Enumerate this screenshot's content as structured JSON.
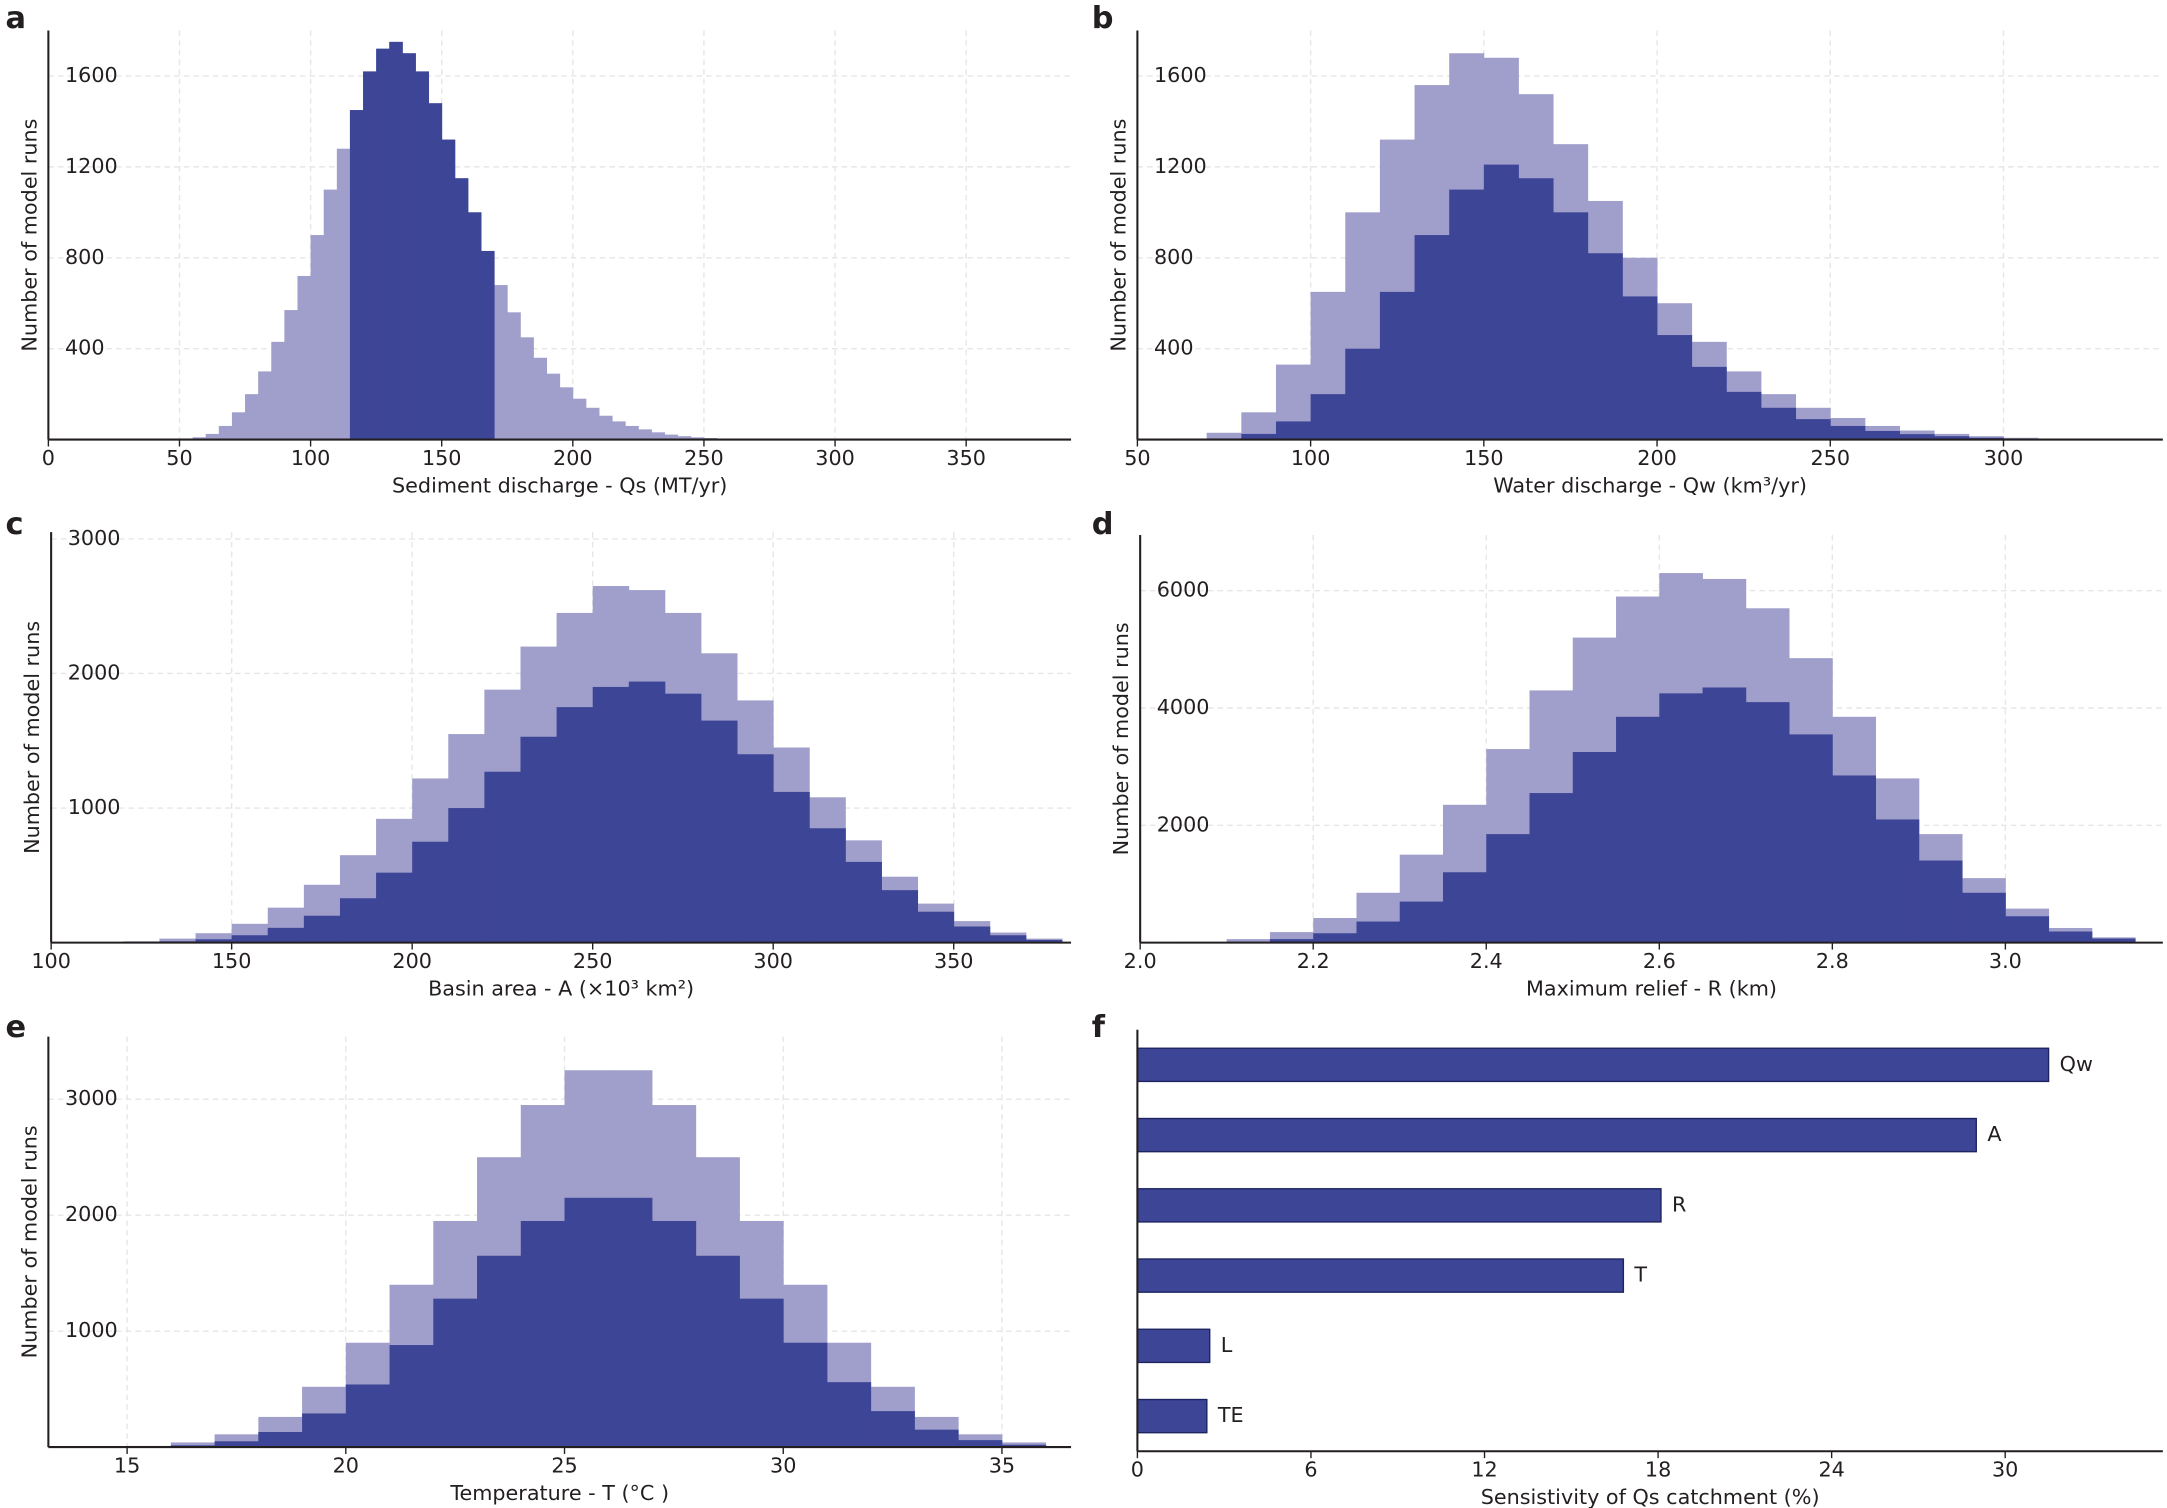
{
  "chart_data": [
    {
      "type": "histogram",
      "panel_label": "a",
      "xlabel": "Sediment discharge - Qs (MT/yr)",
      "ylabel": "Number of model runs",
      "bins": [
        50,
        55,
        60,
        65,
        70,
        75,
        80,
        85,
        90,
        95,
        100,
        105,
        110,
        115,
        120,
        125,
        130,
        135,
        140,
        145,
        150,
        155,
        160,
        165,
        170,
        175,
        180,
        185,
        190,
        195,
        200,
        205,
        210,
        215,
        220,
        225,
        230,
        235,
        240,
        245,
        250,
        255,
        260,
        265,
        270
      ],
      "series": [
        {
          "color": "#a09fcb",
          "values": [
            5,
            10,
            25,
            60,
            120,
            200,
            300,
            430,
            570,
            720,
            900,
            1100,
            1280,
            1450,
            1620,
            1720,
            1750,
            1700,
            1620,
            1480,
            1320,
            1150,
            1000,
            830,
            680,
            560,
            450,
            360,
            290,
            230,
            180,
            140,
            105,
            80,
            60,
            45,
            32,
            22,
            15,
            10,
            7,
            4,
            2,
            1
          ]
        },
        {
          "color": "#3d4597",
          "values": [
            null,
            null,
            null,
            null,
            null,
            null,
            null,
            null,
            null,
            null,
            null,
            null,
            null,
            1450,
            1620,
            1720,
            1750,
            1700,
            1620,
            1480,
            1320,
            1150,
            1000,
            830,
            null,
            null,
            null,
            null,
            null,
            null,
            null,
            null,
            null,
            null,
            null,
            null,
            null,
            null,
            null,
            null,
            null,
            null,
            null,
            null
          ]
        }
      ],
      "xlim": [
        0,
        390
      ],
      "ylim": [
        0,
        1800
      ],
      "xticks": [
        0,
        50,
        100,
        150,
        200,
        250,
        300,
        350
      ],
      "yticks": [
        400,
        800,
        1200,
        1600
      ],
      "grid": true
    },
    {
      "type": "histogram",
      "panel_label": "b",
      "xlabel": "Water discharge - Qw (km³/yr)",
      "ylabel": "Number of model runs",
      "bins": [
        60,
        70,
        80,
        90,
        100,
        110,
        120,
        130,
        140,
        150,
        160,
        170,
        180,
        190,
        200,
        210,
        220,
        230,
        240,
        250,
        260,
        270,
        280,
        290,
        300,
        310
      ],
      "series": [
        {
          "color": "#a09fcb",
          "values": [
            5,
            30,
            120,
            330,
            650,
            1000,
            1320,
            1560,
            1700,
            1680,
            1520,
            1300,
            1050,
            800,
            600,
            430,
            300,
            200,
            140,
            95,
            60,
            40,
            25,
            15,
            8
          ]
        },
        {
          "color": "#3d4597",
          "values": [
            0,
            5,
            25,
            80,
            200,
            400,
            650,
            900,
            1100,
            1210,
            1150,
            1000,
            820,
            630,
            460,
            320,
            210,
            140,
            90,
            60,
            38,
            24,
            15,
            8,
            4
          ]
        }
      ],
      "xlim": [
        50,
        346
      ],
      "ylim": [
        0,
        1800
      ],
      "xticks": [
        50,
        100,
        150,
        200,
        250,
        300
      ],
      "yticks": [
        400,
        800,
        1200,
        1600
      ],
      "grid": true
    },
    {
      "type": "histogram",
      "panel_label": "c",
      "xlabel": "Basin area - A (×10³ km²)",
      "ylabel": "Number of model runs",
      "bins": [
        120,
        130,
        140,
        150,
        160,
        170,
        180,
        190,
        200,
        210,
        220,
        230,
        240,
        250,
        260,
        270,
        280,
        290,
        300,
        310,
        320,
        330,
        340,
        350,
        360,
        370,
        380
      ],
      "series": [
        {
          "color": "#a09fcb",
          "values": [
            10,
            30,
            70,
            140,
            260,
            430,
            650,
            920,
            1220,
            1550,
            1880,
            2200,
            2450,
            2650,
            2620,
            2450,
            2150,
            1800,
            1450,
            1080,
            760,
            490,
            290,
            160,
            75,
            30
          ]
        },
        {
          "color": "#3d4597",
          "values": [
            3,
            10,
            25,
            55,
            110,
            200,
            330,
            520,
            750,
            1000,
            1270,
            1530,
            1750,
            1900,
            1940,
            1850,
            1650,
            1400,
            1120,
            850,
            600,
            390,
            230,
            120,
            55,
            20
          ]
        }
      ],
      "xlim": [
        100,
        382.5
      ],
      "ylim": [
        0,
        3050
      ],
      "xticks": [
        100,
        150,
        200,
        250,
        300,
        350
      ],
      "yticks": [
        1000,
        2000,
        3000
      ],
      "grid": true
    },
    {
      "type": "histogram",
      "panel_label": "d",
      "xlabel": "Maximum relief - R (km)",
      "ylabel": "Number of model runs",
      "bins": [
        2.05,
        2.1,
        2.15,
        2.2,
        2.25,
        2.3,
        2.35,
        2.4,
        2.45,
        2.5,
        2.55,
        2.6,
        2.65,
        2.7,
        2.75,
        2.8,
        2.85,
        2.9,
        2.95,
        3.0,
        3.05,
        3.1,
        3.15
      ],
      "series": [
        {
          "color": "#a09fcb",
          "values": [
            15,
            60,
            180,
            420,
            850,
            1500,
            2350,
            3300,
            4300,
            5200,
            5900,
            6300,
            6200,
            5700,
            4850,
            3850,
            2800,
            1850,
            1100,
            580,
            250,
            90
          ]
        },
        {
          "color": "#3d4597",
          "values": [
            3,
            15,
            60,
            160,
            360,
            700,
            1200,
            1850,
            2550,
            3250,
            3850,
            4250,
            4350,
            4100,
            3550,
            2850,
            2100,
            1400,
            850,
            450,
            190,
            70
          ]
        }
      ],
      "xlim": [
        2.0,
        3.182
      ],
      "ylim": [
        0,
        6950
      ],
      "xticks": [
        {
          "value": 2,
          "label": "2.0"
        },
        2.2,
        2.4,
        2.6,
        2.8,
        {
          "value": 3,
          "label": "3.0"
        }
      ],
      "yticks": [
        2000,
        4000,
        6000
      ],
      "grid": true
    },
    {
      "type": "histogram",
      "panel_label": "e",
      "xlabel": "Temperature - T (°C )",
      "ylabel": "Number of model runs",
      "bins": [
        15,
        16,
        17,
        18,
        19,
        20,
        21,
        22,
        23,
        24,
        25,
        26,
        27,
        28,
        29,
        30,
        31,
        32,
        33,
        34,
        35,
        36
      ],
      "series": [
        {
          "color": "#a09fcb",
          "values": [
            10,
            40,
            110,
            260,
            520,
            900,
            1400,
            1950,
            2500,
            2950,
            3250,
            3250,
            2950,
            2500,
            1950,
            1400,
            900,
            520,
            260,
            110,
            40
          ]
        },
        {
          "color": "#3d4597",
          "values": [
            3,
            15,
            50,
            130,
            290,
            540,
            880,
            1280,
            1650,
            1950,
            2150,
            2150,
            1950,
            1650,
            1280,
            900,
            560,
            310,
            150,
            60,
            20
          ]
        }
      ],
      "xlim": [
        13.2,
        36.58
      ],
      "ylim": [
        0,
        3540
      ],
      "xticks": [
        15,
        20,
        25,
        30,
        35
      ],
      "yticks": [
        1000,
        2000,
        3000
      ],
      "grid": true
    },
    {
      "type": "bar",
      "orientation": "horizontal",
      "panel_label": "f",
      "xlabel": "Sensistivity of Qs catchment (%)",
      "categories": [
        "Qw",
        "A",
        "R",
        "T",
        "L",
        "TE"
      ],
      "values": [
        31.5,
        29,
        18.1,
        16.8,
        2.5,
        2.4
      ],
      "color": "#3d4597",
      "xlim": [
        0,
        35.45
      ],
      "xticks": [
        0,
        6,
        12,
        18,
        24,
        30
      ]
    }
  ]
}
